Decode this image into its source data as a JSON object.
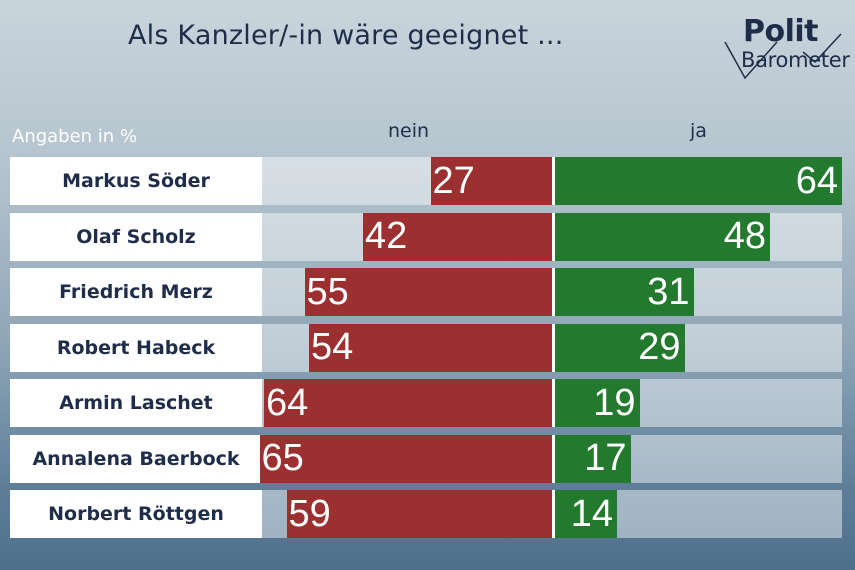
{
  "title": "Als Kanzler/-in wäre geeignet ...",
  "logo": {
    "line1": "Polit",
    "line2": "Barometer"
  },
  "unit_label": "Angaben in %",
  "chart_data": {
    "type": "bar",
    "categories": [
      "Markus Söder",
      "Olaf Scholz",
      "Friedrich Merz",
      "Robert Habeck",
      "Armin Laschet",
      "Annalena Baerbock",
      "Norbert Röttgen"
    ],
    "series": [
      {
        "name": "nein",
        "values": [
          27,
          42,
          55,
          54,
          64,
          65,
          59
        ],
        "color": "#9c2f2f"
      },
      {
        "name": "ja",
        "values": [
          64,
          48,
          31,
          29,
          19,
          17,
          14
        ],
        "color": "#237a2e"
      }
    ],
    "xlim": [
      0,
      65
    ]
  }
}
